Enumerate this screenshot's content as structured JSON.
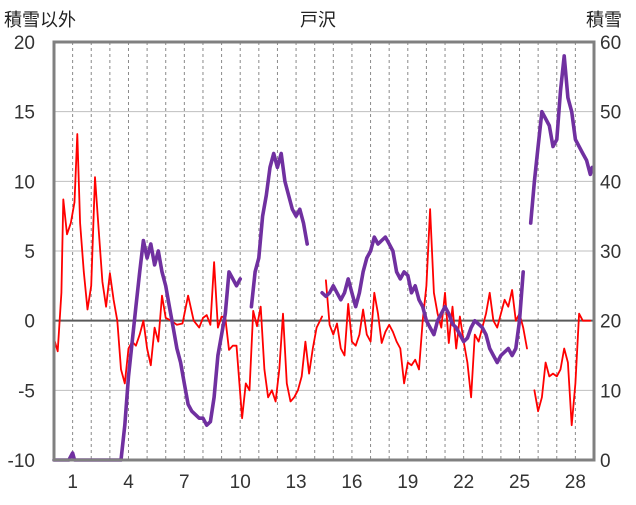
{
  "chart_data": {
    "type": "line",
    "title": "戸沢",
    "left_axis_label": "積雪以外",
    "right_axis_label": "積雪",
    "left_ylim": [
      -10,
      20
    ],
    "left_ticks": [
      -10,
      -5,
      0,
      5,
      10,
      15,
      20
    ],
    "right_ylim": [
      0,
      60
    ],
    "right_ticks": [
      0,
      10,
      20,
      30,
      40,
      50,
      60
    ],
    "xlim": [
      0,
      29
    ],
    "x_tick_labels": [
      "1",
      "4",
      "7",
      "10",
      "13",
      "16",
      "19",
      "22",
      "25",
      "28"
    ],
    "x_tick_positions": [
      1,
      4,
      7,
      10,
      13,
      16,
      19,
      22,
      25,
      28
    ],
    "grid": "vertical dashed per day, horizontal at left-axis ticks",
    "series": [
      {
        "axis": "left",
        "color": "#ff0000",
        "points": [
          [
            0.0,
            -1.3
          ],
          [
            0.2,
            -2.2
          ],
          [
            0.4,
            2.0
          ],
          [
            0.5,
            8.7
          ],
          [
            0.7,
            6.2
          ],
          [
            0.9,
            7.0
          ],
          [
            1.1,
            8.5
          ],
          [
            1.25,
            13.4
          ],
          [
            1.4,
            7.0
          ],
          [
            1.6,
            3.5
          ],
          [
            1.8,
            0.8
          ],
          [
            2.0,
            2.5
          ],
          [
            2.2,
            10.3
          ],
          [
            2.4,
            6.5
          ],
          [
            2.6,
            2.8
          ],
          [
            2.8,
            1.0
          ],
          [
            3.0,
            3.4
          ],
          [
            3.2,
            1.5
          ],
          [
            3.4,
            0.0
          ],
          [
            3.6,
            -3.5
          ],
          [
            3.8,
            -4.5
          ],
          [
            4.0,
            -2.0
          ],
          [
            4.2,
            -1.5
          ],
          [
            4.4,
            -1.8
          ],
          [
            4.6,
            -1.0
          ],
          [
            4.8,
            0.0
          ],
          [
            5.0,
            -2.0
          ],
          [
            5.2,
            -3.2
          ],
          [
            5.4,
            -0.5
          ],
          [
            5.6,
            -1.5
          ],
          [
            5.8,
            1.8
          ],
          [
            6.0,
            0.2
          ],
          [
            6.3,
            0.0
          ],
          [
            6.6,
            -0.3
          ],
          [
            6.9,
            -0.2
          ],
          [
            7.2,
            1.8
          ],
          [
            7.5,
            0.0
          ],
          [
            7.8,
            -0.5
          ],
          [
            8.0,
            0.2
          ],
          [
            8.2,
            0.4
          ],
          [
            8.4,
            -0.3
          ],
          [
            8.6,
            4.2
          ],
          [
            8.8,
            -0.5
          ],
          [
            9.0,
            0.3
          ],
          [
            9.2,
            0.2
          ],
          [
            9.4,
            -2.1
          ],
          [
            9.6,
            -1.8
          ],
          [
            9.8,
            -1.8
          ],
          [
            10.1,
            -7.0
          ],
          [
            10.3,
            -4.5
          ],
          [
            10.5,
            -5.0
          ],
          [
            10.7,
            0.7
          ],
          [
            10.9,
            -0.4
          ],
          [
            11.1,
            1.0
          ],
          [
            11.3,
            -3.5
          ],
          [
            11.5,
            -5.5
          ],
          [
            11.7,
            -5.0
          ],
          [
            11.9,
            -5.8
          ],
          [
            12.1,
            -3.5
          ],
          [
            12.3,
            0.5
          ],
          [
            12.5,
            -4.5
          ],
          [
            12.7,
            -5.8
          ],
          [
            12.9,
            -5.5
          ],
          [
            13.1,
            -5.0
          ],
          [
            13.3,
            -4.0
          ],
          [
            13.5,
            -1.5
          ],
          [
            13.7,
            -3.8
          ],
          [
            13.9,
            -2.0
          ],
          [
            14.1,
            -0.5
          ],
          [
            14.4,
            0.3
          ],
          null,
          [
            14.6,
            2.9
          ],
          [
            14.8,
            -0.3
          ],
          [
            15.0,
            -1.0
          ],
          [
            15.2,
            -0.2
          ],
          [
            15.4,
            -2.0
          ],
          [
            15.6,
            -2.5
          ],
          [
            15.8,
            1.2
          ],
          [
            16.0,
            -1.5
          ],
          [
            16.2,
            -1.8
          ],
          [
            16.4,
            -1.0
          ],
          [
            16.6,
            0.8
          ],
          [
            16.8,
            -1.0
          ],
          [
            17.0,
            -1.5
          ],
          [
            17.2,
            2.0
          ],
          [
            17.4,
            0.5
          ],
          [
            17.6,
            -1.6
          ],
          [
            17.8,
            -0.8
          ],
          [
            18.0,
            -0.3
          ],
          [
            18.2,
            -0.8
          ],
          [
            18.4,
            -1.5
          ],
          [
            18.6,
            -2.0
          ],
          [
            18.8,
            -4.5
          ],
          [
            19.0,
            -3.0
          ],
          [
            19.2,
            -3.2
          ],
          [
            19.4,
            -2.8
          ],
          [
            19.6,
            -3.5
          ],
          [
            19.8,
            0.0
          ],
          [
            20.0,
            2.5
          ],
          [
            20.2,
            8.0
          ],
          [
            20.4,
            2.0
          ],
          [
            20.6,
            0.5
          ],
          [
            20.8,
            -0.5
          ],
          [
            21.0,
            2.0
          ],
          [
            21.2,
            -1.6
          ],
          [
            21.4,
            1.0
          ],
          [
            21.6,
            -2.0
          ],
          [
            21.8,
            0.3
          ],
          [
            22.0,
            -1.5
          ],
          [
            22.2,
            -3.0
          ],
          [
            22.4,
            -5.5
          ],
          [
            22.6,
            -1.0
          ],
          [
            22.8,
            -1.5
          ],
          [
            23.0,
            -0.5
          ],
          [
            23.2,
            0.5
          ],
          [
            23.4,
            2.0
          ],
          [
            23.6,
            0.0
          ],
          [
            23.8,
            -0.5
          ],
          [
            24.0,
            0.5
          ],
          [
            24.2,
            1.5
          ],
          [
            24.4,
            1.0
          ],
          [
            24.6,
            2.2
          ],
          [
            24.8,
            0.0
          ],
          [
            25.0,
            0.5
          ],
          [
            25.2,
            -0.5
          ],
          [
            25.4,
            -2.0
          ],
          null,
          [
            25.8,
            -5.0
          ],
          [
            26.0,
            -6.5
          ],
          [
            26.2,
            -5.5
          ],
          [
            26.4,
            -3.0
          ],
          [
            26.6,
            -4.0
          ],
          [
            26.8,
            -3.8
          ],
          [
            27.0,
            -4.0
          ],
          [
            27.2,
            -3.5
          ],
          [
            27.4,
            -2.0
          ],
          [
            27.6,
            -3.0
          ],
          [
            27.8,
            -7.5
          ],
          [
            28.0,
            -4.5
          ],
          [
            28.2,
            0.5
          ],
          [
            28.4,
            0.0
          ],
          [
            28.6,
            0.0
          ],
          [
            28.8,
            0.0
          ]
        ]
      },
      {
        "axis": "right",
        "color": "#7030a0",
        "points": [
          [
            0.0,
            0.0
          ],
          [
            0.8,
            0.0
          ],
          [
            1.0,
            1.0
          ],
          [
            1.1,
            0.0
          ],
          [
            3.6,
            0.0
          ],
          [
            3.8,
            5.0
          ],
          [
            4.0,
            12.0
          ],
          [
            4.2,
            17.0
          ],
          [
            4.4,
            22.0
          ],
          [
            4.6,
            27.0
          ],
          [
            4.8,
            31.5
          ],
          [
            5.0,
            29.0
          ],
          [
            5.2,
            31.0
          ],
          [
            5.4,
            28.0
          ],
          [
            5.6,
            30.0
          ],
          [
            5.8,
            27.0
          ],
          [
            6.0,
            25.0
          ],
          [
            6.2,
            22.0
          ],
          [
            6.4,
            19.0
          ],
          [
            6.6,
            16.0
          ],
          [
            6.8,
            14.0
          ],
          [
            7.0,
            11.0
          ],
          [
            7.2,
            8.0
          ],
          [
            7.4,
            7.0
          ],
          [
            7.6,
            6.5
          ],
          [
            7.8,
            6.0
          ],
          [
            8.0,
            6.0
          ],
          [
            8.2,
            5.0
          ],
          [
            8.4,
            5.5
          ],
          [
            8.6,
            9.0
          ],
          [
            8.8,
            15.0
          ],
          [
            9.0,
            18.0
          ],
          [
            9.2,
            21.0
          ],
          [
            9.4,
            27.0
          ],
          [
            9.6,
            26.0
          ],
          [
            9.8,
            25.0
          ],
          [
            10.0,
            26.0
          ],
          null,
          [
            10.6,
            22.0
          ],
          [
            10.8,
            27.0
          ],
          [
            11.0,
            29.0
          ],
          [
            11.2,
            35.0
          ],
          [
            11.4,
            38.0
          ],
          [
            11.6,
            42.0
          ],
          [
            11.8,
            44.0
          ],
          [
            12.0,
            42.0
          ],
          [
            12.2,
            44.0
          ],
          [
            12.4,
            40.0
          ],
          [
            12.6,
            38.0
          ],
          [
            12.8,
            36.0
          ],
          [
            13.0,
            35.0
          ],
          [
            13.2,
            36.0
          ],
          [
            13.4,
            34.0
          ],
          [
            13.6,
            31.0
          ],
          null,
          [
            14.4,
            24.0
          ],
          [
            14.6,
            23.5
          ],
          [
            14.8,
            24.0
          ],
          [
            15.0,
            25.0
          ],
          [
            15.2,
            24.0
          ],
          [
            15.4,
            23.0
          ],
          [
            15.6,
            24.0
          ],
          [
            15.8,
            26.0
          ],
          [
            16.0,
            24.0
          ],
          [
            16.2,
            22.0
          ],
          [
            16.4,
            24.0
          ],
          [
            16.6,
            27.0
          ],
          [
            16.8,
            29.0
          ],
          [
            17.0,
            30.0
          ],
          [
            17.2,
            32.0
          ],
          [
            17.4,
            31.0
          ],
          [
            17.6,
            31.5
          ],
          [
            17.8,
            32.0
          ],
          [
            18.0,
            31.0
          ],
          [
            18.2,
            30.0
          ],
          [
            18.4,
            27.0
          ],
          [
            18.6,
            26.0
          ],
          [
            18.8,
            27.0
          ],
          [
            19.0,
            26.5
          ],
          [
            19.2,
            24.0
          ],
          [
            19.4,
            25.0
          ],
          [
            19.6,
            23.0
          ],
          [
            19.8,
            22.0
          ],
          [
            20.0,
            20.0
          ],
          [
            20.2,
            19.0
          ],
          [
            20.4,
            18.0
          ],
          [
            20.6,
            20.0
          ],
          [
            20.8,
            21.0
          ],
          [
            21.0,
            22.0
          ],
          [
            21.2,
            21.0
          ],
          [
            21.4,
            19.5
          ],
          [
            21.6,
            19.0
          ],
          [
            21.8,
            18.0
          ],
          [
            22.0,
            17.0
          ],
          [
            22.2,
            17.5
          ],
          [
            22.4,
            19.0
          ],
          [
            22.6,
            20.0
          ],
          [
            22.8,
            19.5
          ],
          [
            23.0,
            19.0
          ],
          [
            23.2,
            18.0
          ],
          [
            23.4,
            16.0
          ],
          [
            23.6,
            15.0
          ],
          [
            23.8,
            14.0
          ],
          [
            24.0,
            15.0
          ],
          [
            24.2,
            15.5
          ],
          [
            24.4,
            16.0
          ],
          [
            24.6,
            15.0
          ],
          [
            24.8,
            16.0
          ],
          [
            25.0,
            20.0
          ],
          [
            25.2,
            27.0
          ],
          null,
          [
            25.6,
            34.0
          ],
          [
            25.8,
            40.0
          ],
          [
            26.0,
            45.0
          ],
          [
            26.2,
            50.0
          ],
          [
            26.4,
            49.0
          ],
          [
            26.6,
            48.0
          ],
          [
            26.8,
            45.0
          ],
          [
            27.0,
            46.0
          ],
          [
            27.2,
            53.0
          ],
          [
            27.4,
            58.0
          ],
          [
            27.6,
            52.0
          ],
          [
            27.8,
            50.0
          ],
          [
            28.0,
            46.0
          ],
          [
            28.2,
            45.0
          ],
          [
            28.4,
            44.0
          ],
          [
            28.6,
            43.0
          ],
          [
            28.8,
            41.0
          ],
          [
            28.9,
            42.0
          ]
        ]
      }
    ]
  }
}
